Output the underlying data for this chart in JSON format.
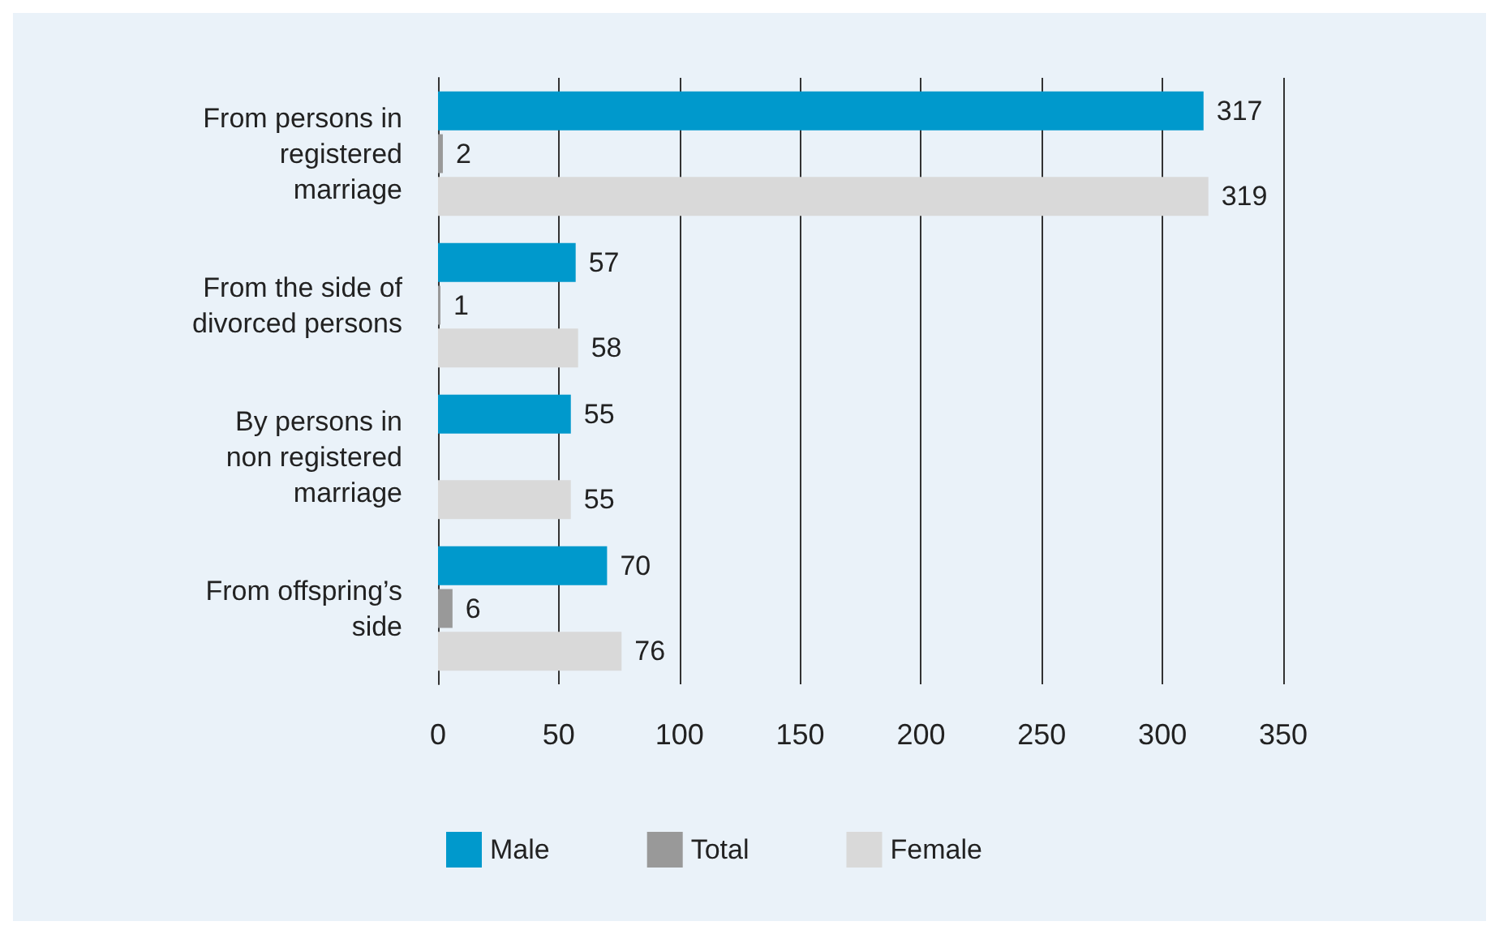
{
  "chart_data": {
    "type": "bar",
    "orientation": "horizontal",
    "categories": [
      "From persons in\nregistered\nmarriage",
      "From the side of\ndivorced persons",
      "By persons in\nnon registered\nmarriage",
      "From offspring’s\nside"
    ],
    "series": [
      {
        "name": "Male",
        "color": "#0099cc",
        "values": [
          317,
          57,
          55,
          70
        ]
      },
      {
        "name": "Total",
        "color": "#999999",
        "values": [
          2,
          1,
          null,
          6
        ]
      },
      {
        "name": "Female",
        "color": "#d9d9d9",
        "values": [
          319,
          58,
          55,
          76
        ]
      }
    ],
    "xlim": [
      0,
      350
    ],
    "xticks": [
      0,
      50,
      100,
      150,
      200,
      250,
      300,
      350
    ],
    "grid": "x",
    "data_labels": true,
    "legend": "bottom"
  }
}
